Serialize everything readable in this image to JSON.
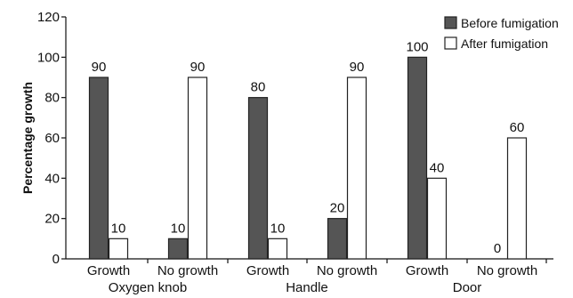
{
  "chart_data": {
    "type": "bar",
    "ylabel": "Percentage growth",
    "ylim": [
      0,
      120
    ],
    "yticks": [
      0,
      20,
      40,
      60,
      80,
      100,
      120
    ],
    "categories": [
      "Growth",
      "No growth",
      "Growth",
      "No growth",
      "Growth",
      "No growth"
    ],
    "groups": [
      "Oxygen knob",
      "Handle",
      "Door"
    ],
    "series": [
      {
        "name": "Before fumigation",
        "color": "#555555",
        "values": [
          90,
          10,
          80,
          20,
          100,
          0
        ]
      },
      {
        "name": "After fumigation",
        "color": "#ffffff",
        "values": [
          10,
          90,
          10,
          90,
          40,
          60
        ]
      }
    ],
    "legend_position": "top-right",
    "grid": false
  }
}
